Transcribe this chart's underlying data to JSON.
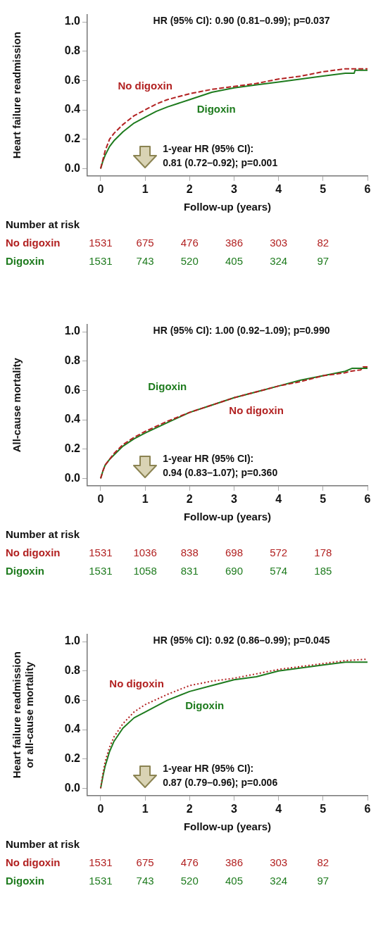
{
  "chart_data": [
    {
      "type": "line",
      "xlabel": "Follow-up (years)",
      "ylabel": "Heart failure readmission",
      "xlim": [
        -0.3,
        6
      ],
      "ylim": [
        -0.05,
        1.05
      ],
      "xticks": [
        0,
        1,
        2,
        3,
        4,
        5,
        6
      ],
      "yticks": [
        {
          "value": 0,
          "label": "0.0"
        },
        {
          "value": 0.2,
          "label": "0.2"
        },
        {
          "value": 0.4,
          "label": "0.4"
        },
        {
          "value": 0.6,
          "label": "0.6"
        },
        {
          "value": 0.8,
          "label": "0.8"
        },
        {
          "value": 1,
          "label": "1.0"
        }
      ],
      "grid": false,
      "legend": false,
      "marker": "none",
      "series": [
        {
          "name": "No digoxin",
          "color": "#b22222",
          "line_style": "dashed",
          "x": [
            0,
            0.05,
            0.1,
            0.2,
            0.3,
            0.5,
            0.75,
            1,
            1.25,
            1.5,
            2,
            2.5,
            3,
            3.5,
            4,
            4.5,
            5,
            5.5,
            6
          ],
          "values": [
            0,
            0.06,
            0.12,
            0.2,
            0.24,
            0.3,
            0.36,
            0.4,
            0.44,
            0.47,
            0.51,
            0.54,
            0.56,
            0.58,
            0.61,
            0.63,
            0.66,
            0.68,
            0.68
          ]
        },
        {
          "name": "Digoxin",
          "color": "#1e7b1e",
          "line_style": "solid",
          "x": [
            0,
            0.05,
            0.1,
            0.2,
            0.3,
            0.5,
            0.75,
            1,
            1.25,
            1.5,
            2,
            2.5,
            3,
            3.5,
            4,
            4.5,
            5,
            5.5,
            5.7,
            5.72,
            6
          ],
          "values": [
            0,
            0.05,
            0.09,
            0.15,
            0.19,
            0.25,
            0.31,
            0.35,
            0.39,
            0.42,
            0.47,
            0.52,
            0.55,
            0.57,
            0.59,
            0.61,
            0.63,
            0.65,
            0.65,
            0.67,
            0.67
          ]
        }
      ],
      "annotations": [
        "HR (95% CI): 0.90 (0.81–0.99); p=0.037",
        "1-year HR (95% CI):",
        "0.81 (0.72–0.92); p=0.001",
        "Number at risk",
        "1531",
        "675",
        "476",
        "386",
        "303",
        "82",
        "1531",
        "743",
        "520",
        "405",
        "324",
        "97"
      ]
    },
    {
      "type": "line",
      "xlabel": "Follow-up (years)",
      "ylabel": "All-cause mortality",
      "xlim": [
        -0.3,
        6
      ],
      "ylim": [
        -0.05,
        1.05
      ],
      "xticks": [
        0,
        1,
        2,
        3,
        4,
        5,
        6
      ],
      "yticks": [
        {
          "value": 0,
          "label": "0.0"
        },
        {
          "value": 0.2,
          "label": "0.2"
        },
        {
          "value": 0.4,
          "label": "0.4"
        },
        {
          "value": 0.6,
          "label": "0.6"
        },
        {
          "value": 0.8,
          "label": "0.8"
        },
        {
          "value": 1,
          "label": "1.0"
        }
      ],
      "grid": false,
      "legend": false,
      "marker": "none",
      "series": [
        {
          "name": "No digoxin",
          "color": "#b22222",
          "line_style": "dashed",
          "x": [
            0,
            0.05,
            0.1,
            0.2,
            0.3,
            0.5,
            0.75,
            1,
            1.5,
            2,
            2.5,
            3,
            3.5,
            4,
            4.5,
            5,
            5.5,
            5.6,
            5.85,
            5.9,
            6
          ],
          "values": [
            0,
            0.05,
            0.09,
            0.13,
            0.17,
            0.23,
            0.28,
            0.32,
            0.39,
            0.45,
            0.5,
            0.55,
            0.59,
            0.63,
            0.66,
            0.7,
            0.72,
            0.73,
            0.74,
            0.76,
            0.76
          ]
        },
        {
          "name": "Digoxin",
          "color": "#1e7b1e",
          "line_style": "solid",
          "x": [
            0,
            0.05,
            0.1,
            0.2,
            0.3,
            0.5,
            0.75,
            1,
            1.5,
            2,
            2.5,
            3,
            3.5,
            4,
            4.5,
            5,
            5.5,
            5.65,
            6
          ],
          "values": [
            0,
            0.05,
            0.09,
            0.13,
            0.16,
            0.22,
            0.27,
            0.31,
            0.38,
            0.45,
            0.5,
            0.55,
            0.59,
            0.63,
            0.67,
            0.7,
            0.73,
            0.75,
            0.75
          ]
        }
      ],
      "annotations": [
        "HR (95% CI): 1.00 (0.92–1.09); p=0.990",
        "1-year HR (95% CI):",
        "0.94 (0.83–1.07); p=0.360",
        "Number at risk",
        "1531",
        "1036",
        "838",
        "698",
        "572",
        "178",
        "1531",
        "1058",
        "831",
        "690",
        "574",
        "185"
      ]
    },
    {
      "type": "line",
      "xlabel": "Follow-up (years)",
      "ylabel": "Heart failure readmission or all-cause mortality",
      "xlim": [
        -0.3,
        6
      ],
      "ylim": [
        -0.05,
        1.05
      ],
      "xticks": [
        0,
        1,
        2,
        3,
        4,
        5,
        6
      ],
      "yticks": [
        {
          "value": 0,
          "label": "0.0"
        },
        {
          "value": 0.2,
          "label": "0.2"
        },
        {
          "value": 0.4,
          "label": "0.4"
        },
        {
          "value": 0.6,
          "label": "0.6"
        },
        {
          "value": 0.8,
          "label": "0.8"
        },
        {
          "value": 1,
          "label": "1.0"
        }
      ],
      "grid": false,
      "legend": false,
      "marker": "none",
      "series": [
        {
          "name": "No digoxin",
          "color": "#b22222",
          "line_style": "dotted",
          "x": [
            0,
            0.05,
            0.1,
            0.2,
            0.3,
            0.5,
            0.75,
            1,
            1.5,
            2,
            2.5,
            3,
            3.5,
            4,
            4.5,
            5,
            5.5,
            6
          ],
          "values": [
            0,
            0.1,
            0.18,
            0.28,
            0.35,
            0.44,
            0.52,
            0.57,
            0.64,
            0.7,
            0.73,
            0.75,
            0.78,
            0.81,
            0.83,
            0.85,
            0.87,
            0.88
          ]
        },
        {
          "name": "Digoxin",
          "color": "#1e7b1e",
          "line_style": "solid",
          "x": [
            0,
            0.05,
            0.1,
            0.2,
            0.3,
            0.5,
            0.75,
            1,
            1.5,
            2,
            2.5,
            3,
            3.5,
            4,
            4.5,
            5,
            5.5,
            6
          ],
          "values": [
            0,
            0.08,
            0.15,
            0.25,
            0.32,
            0.41,
            0.48,
            0.52,
            0.6,
            0.66,
            0.7,
            0.74,
            0.76,
            0.8,
            0.82,
            0.84,
            0.86,
            0.86
          ]
        }
      ],
      "annotations": [
        "HR (95% CI): 0.92 (0.86–0.99); p=0.045",
        "1-year HR (95% CI):",
        "0.87 (0.79–0.96); p=0.006",
        "Number at risk",
        "1531",
        "675",
        "476",
        "386",
        "303",
        "82",
        "1531",
        "743",
        "520",
        "405",
        "324",
        "97"
      ]
    }
  ]
}
